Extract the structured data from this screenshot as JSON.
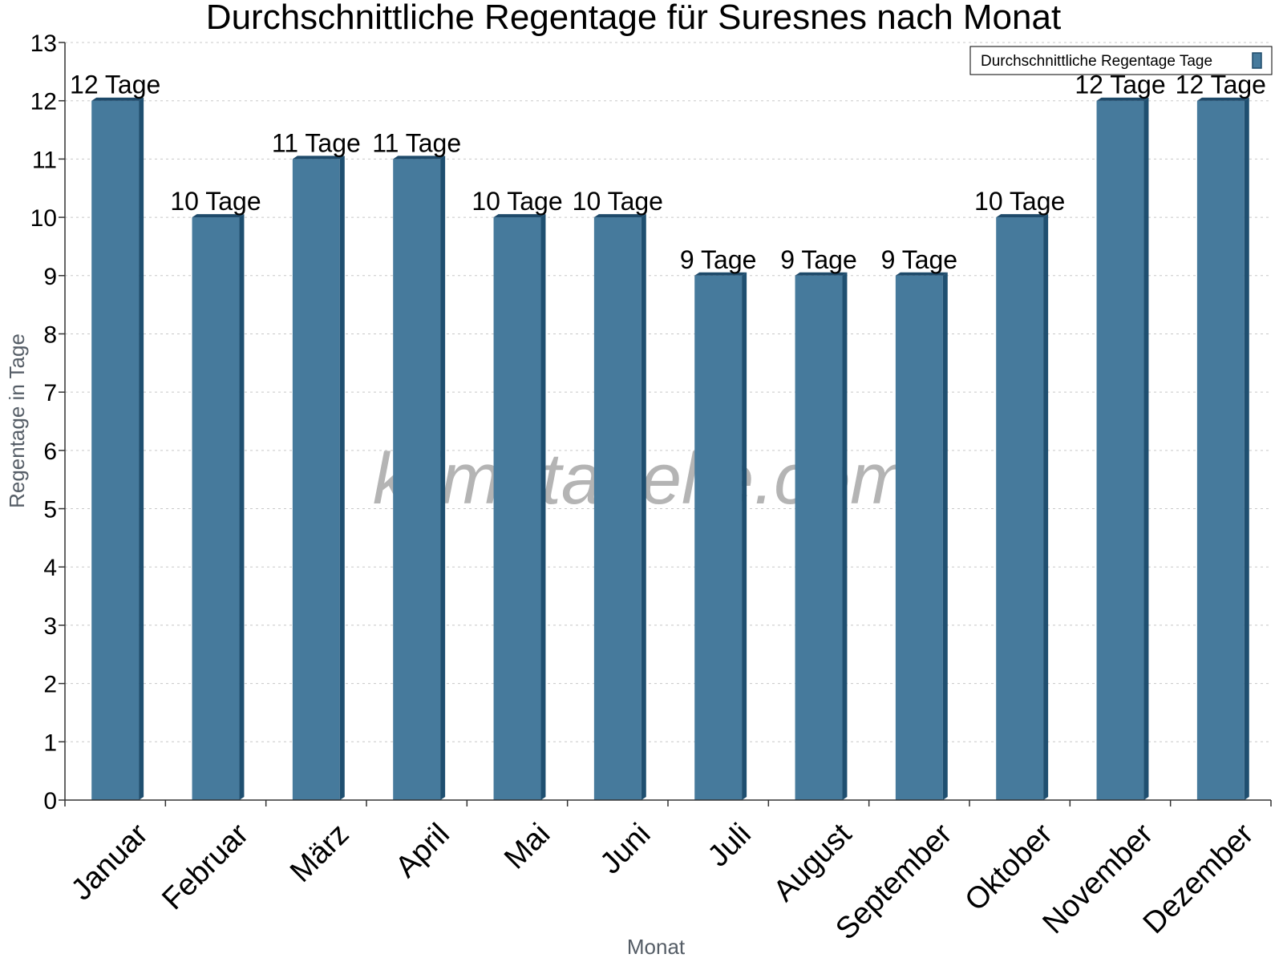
{
  "chart_data": {
    "type": "bar",
    "title": "Durchschnittliche Regentage für Suresnes nach Monat",
    "xlabel": "Monat",
    "ylabel": "Regentage in Tage",
    "ylim": [
      0,
      13
    ],
    "yticks": [
      0,
      1,
      2,
      3,
      4,
      5,
      6,
      7,
      8,
      9,
      10,
      11,
      12,
      13
    ],
    "categories": [
      "Januar",
      "Februar",
      "März",
      "April",
      "Mai",
      "Juni",
      "Juli",
      "August",
      "September",
      "Oktober",
      "November",
      "Dezember"
    ],
    "series": [
      {
        "name": "Durchschnittliche Regentage Tage",
        "values": [
          12,
          10,
          11,
          11,
          10,
          10,
          9,
          9,
          9,
          10,
          12,
          12
        ],
        "labels": [
          "12 Tage",
          "10 Tage",
          "11 Tage",
          "11 Tage",
          "10 Tage",
          "10 Tage",
          "9 Tage",
          "9 Tage",
          "9 Tage",
          "10 Tage",
          "12 Tage",
          "12 Tage"
        ]
      }
    ],
    "grid": true,
    "legend": "top-right",
    "colors": {
      "bar": "#467a9c",
      "bar_side": "#1f4f70",
      "bar_top": "#1e4a6a"
    },
    "watermark": "klimatabelle.com"
  }
}
